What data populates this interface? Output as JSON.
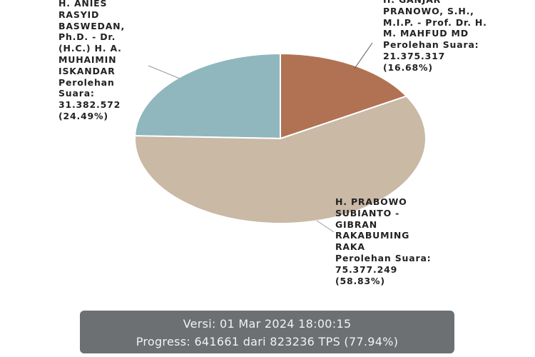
{
  "chart_data": {
    "type": "pie",
    "categories": [
      "H. GANJAR PRANOWO, S.H., M.I.P. - Prof. Dr. H. M. MAHFUD MD",
      "H. PRABOWO SUBIANTO - GIBRAN RAKABUMING RAKA",
      "H. ANIES RASYID BASWEDAN, Ph.D. - Dr. (H.C.) H. A. MUHAIMIN ISKANDAR"
    ],
    "values": [
      16.68,
      58.83,
      24.49
    ],
    "value_labels": [
      "(16.68%)",
      "(58.83%)",
      "(24.49%)"
    ],
    "votes": [
      {
        "value": 21375317,
        "label": "21.375.317"
      },
      {
        "value": 75377249,
        "label": "75.377.249"
      },
      {
        "value": 31382572,
        "label": "31.382.572"
      }
    ],
    "vote_caption": "Perolehan Suara:",
    "colors": [
      "#b07252",
      "#c9b9a5",
      "#8fb7bd"
    ]
  },
  "footer": {
    "version": "Versi: 01 Mar 2024 18:00:15",
    "progress": "Progress: 641661 dari 823236 TPS (77.94%)"
  }
}
